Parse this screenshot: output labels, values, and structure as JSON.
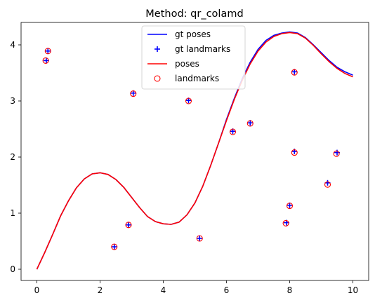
{
  "chart_data": {
    "type": "line",
    "title": "Method: qr_colamd",
    "xlabel": "",
    "ylabel": "",
    "xlim": [
      -0.5,
      10.5
    ],
    "ylim": [
      -0.2,
      4.4
    ],
    "xticks": [
      "0",
      "2",
      "4",
      "6",
      "8",
      "10"
    ],
    "yticks": [
      "0",
      "1",
      "2",
      "3",
      "4"
    ],
    "grid": false,
    "legend_position": "top-center",
    "series": [
      {
        "name": "gt poses",
        "kind": "line",
        "color": "#0000ff",
        "x": [
          0,
          0.25,
          0.5,
          0.75,
          1,
          1.25,
          1.5,
          1.75,
          2,
          2.25,
          2.5,
          2.75,
          3,
          3.25,
          3.5,
          3.75,
          4,
          4.25,
          4.5,
          4.75,
          5,
          5.25,
          5.5,
          5.75,
          6,
          6.25,
          6.5,
          6.75,
          7,
          7.25,
          7.5,
          7.75,
          8,
          8.25,
          8.5,
          8.75,
          9,
          9.25,
          9.5,
          9.75,
          10
        ],
        "y": [
          0,
          0.3,
          0.62,
          0.95,
          1.22,
          1.45,
          1.61,
          1.7,
          1.72,
          1.69,
          1.6,
          1.46,
          1.28,
          1.1,
          0.94,
          0.85,
          0.81,
          0.8,
          0.84,
          0.97,
          1.18,
          1.48,
          1.85,
          2.25,
          2.67,
          3.05,
          3.4,
          3.69,
          3.92,
          4.08,
          4.17,
          4.21,
          4.23,
          4.21,
          4.13,
          4.0,
          3.86,
          3.72,
          3.6,
          3.52,
          3.46
        ]
      },
      {
        "name": "gt landmarks",
        "kind": "marker",
        "marker": "plus",
        "color": "#0000ff",
        "x": [
          0.3,
          0.35,
          2.45,
          2.9,
          3.05,
          4.8,
          5.15,
          6.2,
          6.75,
          7.9,
          8.0,
          8.15,
          8.15,
          9.2,
          9.5
        ],
        "y": [
          3.72,
          3.89,
          0.4,
          0.79,
          3.14,
          3.01,
          0.55,
          2.46,
          2.61,
          0.83,
          1.14,
          3.52,
          2.1,
          1.54,
          2.08
        ]
      },
      {
        "name": "poses",
        "kind": "line",
        "color": "#ff0000",
        "x": [
          0,
          0.25,
          0.5,
          0.75,
          1,
          1.25,
          1.5,
          1.75,
          2,
          2.25,
          2.5,
          2.75,
          3,
          3.25,
          3.5,
          3.75,
          4,
          4.25,
          4.5,
          4.75,
          5,
          5.25,
          5.5,
          5.75,
          6,
          6.25,
          6.5,
          6.75,
          7,
          7.25,
          7.5,
          7.75,
          8,
          8.25,
          8.5,
          8.75,
          9,
          9.25,
          9.5,
          9.75,
          10
        ],
        "y": [
          0,
          0.3,
          0.62,
          0.95,
          1.22,
          1.45,
          1.61,
          1.7,
          1.72,
          1.69,
          1.6,
          1.46,
          1.28,
          1.1,
          0.94,
          0.85,
          0.81,
          0.8,
          0.84,
          0.97,
          1.18,
          1.48,
          1.85,
          2.25,
          2.65,
          3.03,
          3.37,
          3.66,
          3.89,
          4.05,
          4.15,
          4.2,
          4.22,
          4.2,
          4.12,
          3.99,
          3.84,
          3.7,
          3.58,
          3.49,
          3.43
        ]
      },
      {
        "name": "landmarks",
        "kind": "marker",
        "marker": "circle-open",
        "color": "#ff0000",
        "x": [
          0.28,
          0.35,
          2.45,
          2.9,
          3.05,
          4.8,
          5.15,
          6.2,
          6.75,
          7.88,
          8.0,
          8.15,
          8.15,
          9.2,
          9.48
        ],
        "y": [
          3.72,
          3.89,
          0.4,
          0.79,
          3.13,
          3.0,
          0.55,
          2.45,
          2.6,
          0.82,
          1.13,
          3.51,
          2.08,
          1.51,
          2.06
        ]
      }
    ]
  }
}
